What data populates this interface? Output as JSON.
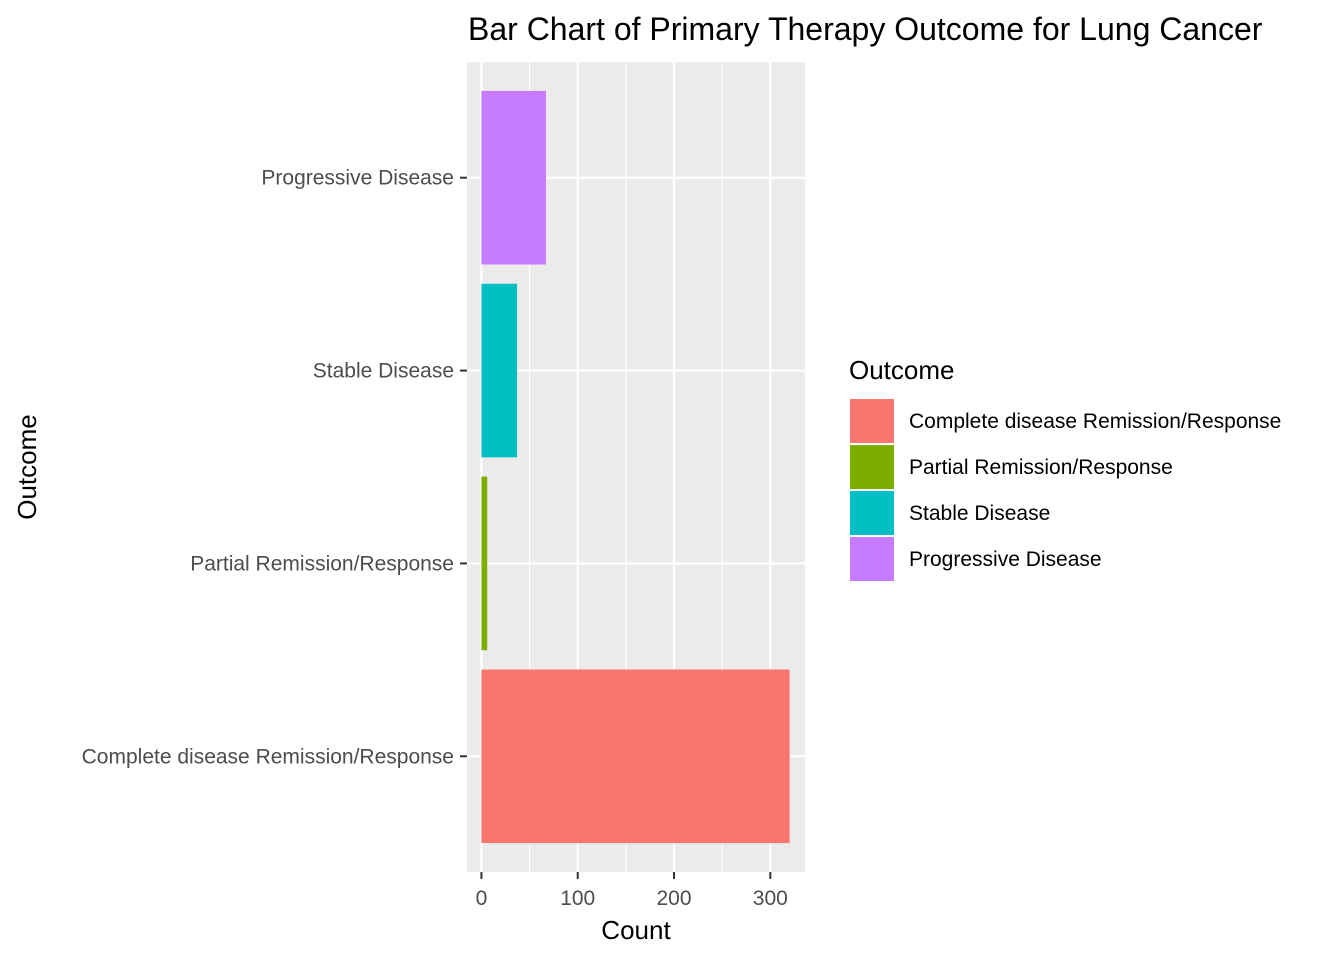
{
  "chart_data": {
    "type": "bar",
    "orientation": "horizontal",
    "title": "Bar Chart of Primary Therapy Outcome for Lung Cancer",
    "xlabel": "Count",
    "ylabel": "Outcome",
    "categories": [
      "Complete disease Remission/Response",
      "Partial Remission/Response",
      "Stable Disease",
      "Progressive Disease"
    ],
    "values": [
      320,
      6,
      37,
      67
    ],
    "colors": [
      "#F8766D",
      "#7CAE00",
      "#00BFC4",
      "#C77CFF"
    ],
    "xlim": [
      -15,
      336
    ],
    "x_ticks": [
      0,
      100,
      200,
      300
    ],
    "x_tick_labels": [
      "0",
      "100",
      "200",
      "300"
    ],
    "grid": true,
    "panel_background": "#EBEBEB",
    "legend": {
      "title": "Outcome",
      "position": "right",
      "entries": [
        "Complete disease Remission/Response",
        "Partial Remission/Response",
        "Stable Disease",
        "Progressive Disease"
      ]
    }
  }
}
